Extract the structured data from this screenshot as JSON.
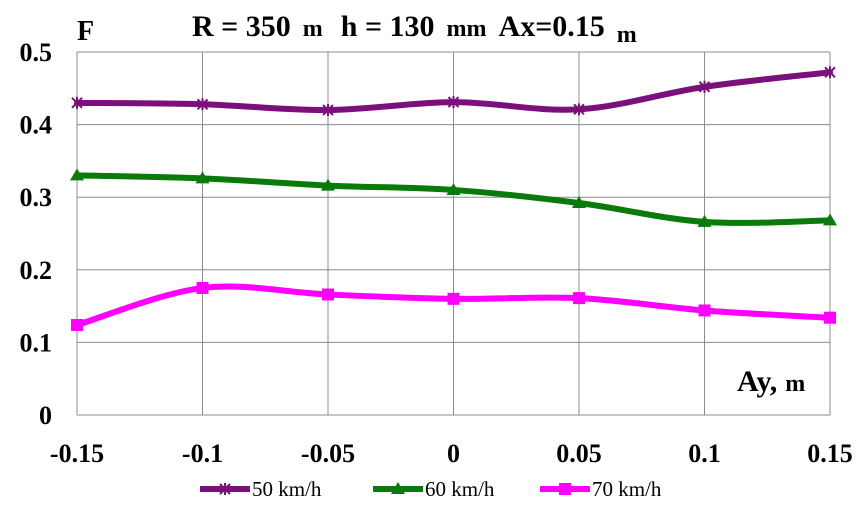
{
  "chart_data": {
    "type": "line",
    "title": "R = 350",
    "title_unit_1": "m",
    "title_mid": "h = 130",
    "title_unit_2": "mm",
    "title_end": "Ax=0.15",
    "title_unit_3": "m",
    "ylabel": "F",
    "xlabel": "Ay,",
    "xlabel_unit": "m",
    "x": [
      -0.15,
      -0.1,
      -0.05,
      0,
      0.05,
      0.1,
      0.15
    ],
    "x_tick_labels": [
      "-0.15",
      "-0.1",
      "-0.05",
      "0",
      "0.05",
      "0.1",
      "0.15"
    ],
    "y_tick_labels": [
      "0",
      "0.1",
      "0.2",
      "0.3",
      "0.4",
      "0.5"
    ],
    "y_ticks": [
      0,
      0.1,
      0.2,
      0.3,
      0.4,
      0.5
    ],
    "xlim": [
      -0.15,
      0.15
    ],
    "ylim": [
      0,
      0.5
    ],
    "grid": true,
    "legend_position": "bottom",
    "series": [
      {
        "name": "50 km/h",
        "color": "#7b0f7b",
        "marker": "star",
        "values": [
          0.43,
          0.428,
          0.42,
          0.431,
          0.421,
          0.452,
          0.472
        ]
      },
      {
        "name": "60 km/h",
        "color": "#0a7a0a",
        "marker": "triangle",
        "values": [
          0.33,
          0.326,
          0.316,
          0.31,
          0.292,
          0.266,
          0.268
        ]
      },
      {
        "name": "70 km/h",
        "color": "#ff00ff",
        "marker": "square",
        "values": [
          0.124,
          0.175,
          0.166,
          0.16,
          0.161,
          0.144,
          0.134
        ]
      }
    ]
  }
}
